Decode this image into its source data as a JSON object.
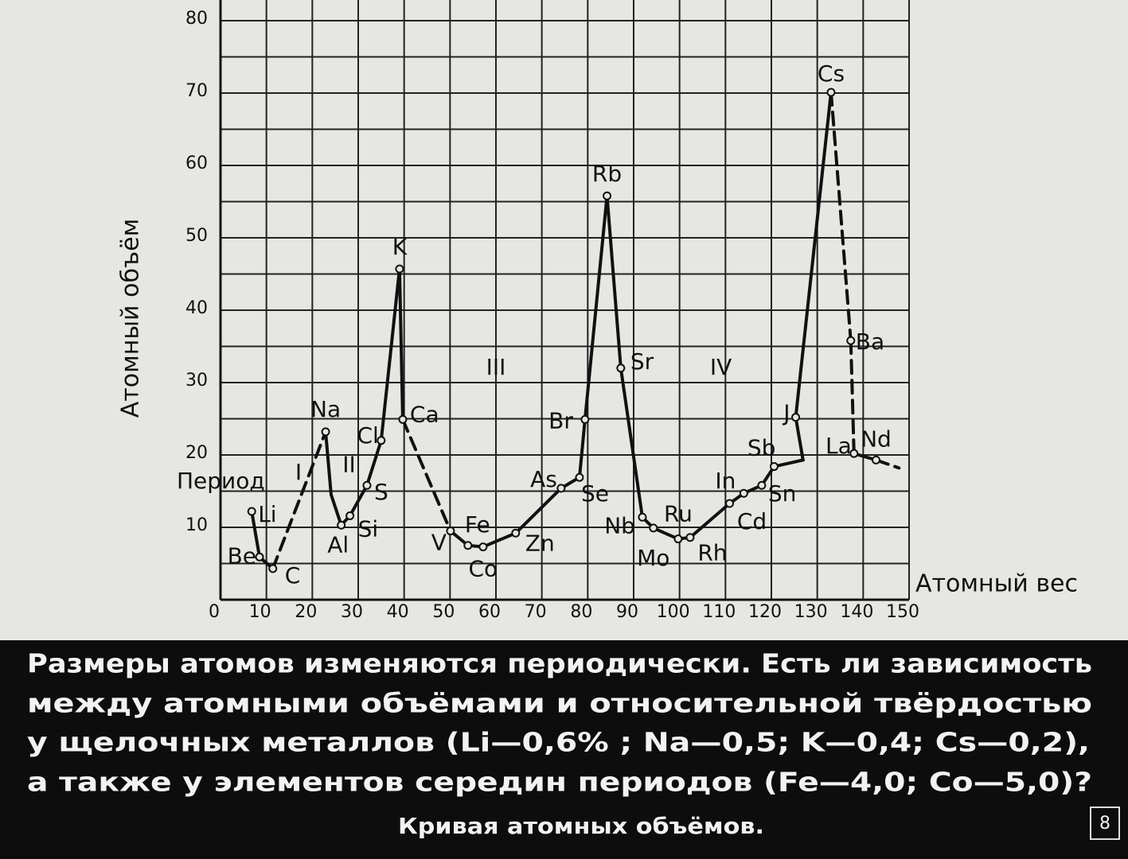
{
  "chart_data": {
    "type": "line",
    "ylabel": "Атомный объём",
    "xlabel": "Атомный вес",
    "period_label": "Период",
    "periods": [
      {
        "label": "I",
        "x": 17,
        "y": 17.5
      },
      {
        "label": "II",
        "x": 28,
        "y": 18.5
      },
      {
        "label": "III",
        "x": 60,
        "y": 32
      },
      {
        "label": "IV",
        "x": 109,
        "y": 32
      }
    ],
    "xlim": [
      0,
      150
    ],
    "ylim": [
      0,
      80
    ],
    "xticks": [
      0,
      10,
      20,
      30,
      40,
      50,
      60,
      70,
      80,
      90,
      100,
      110,
      120,
      130,
      140,
      150
    ],
    "yticks": [
      10,
      20,
      30,
      40,
      50,
      60,
      70,
      80
    ],
    "y_minor_grid": [
      5,
      15,
      25,
      35,
      45,
      55,
      65,
      75
    ],
    "grid": true,
    "series": [
      {
        "color": "#111111",
        "x": [
          6.8,
          8.5,
          11.4,
          22.9,
          24.1,
          26.3,
          28.2,
          31.9,
          35,
          39,
          39.7,
          50.1,
          53.9,
          57.2,
          64.3,
          74.2,
          78.2,
          79.4,
          84.2,
          87.2,
          91.9,
          94.3,
          99.7,
          102.3,
          110.9,
          114,
          117.9,
          120.6,
          126.9,
          125.3,
          133,
          137.3,
          138,
          142.8,
          147.8
        ],
        "values": [
          12.2,
          5.9,
          4.3,
          23.2,
          14.5,
          10.3,
          11.6,
          15.8,
          22,
          45.7,
          24.9,
          9.5,
          7.5,
          7.3,
          9.2,
          15.4,
          16.9,
          24.9,
          55.8,
          32,
          11.4,
          9.9,
          8.4,
          8.6,
          13.3,
          14.7,
          15.8,
          18.4,
          19.3,
          25.2,
          70.1,
          35.8,
          20.2,
          19.3,
          18.2
        ],
        "labels": [
          "Li",
          "Be",
          "C",
          "Na",
          null,
          "Al",
          "Si",
          "S",
          "Cl",
          "K",
          "Ca",
          "V",
          "Fe",
          "Co",
          "Zn",
          "As",
          "Se",
          "Br",
          "Rb",
          "Sr",
          "Nb",
          "Mo",
          "Ru",
          "Rh",
          "Cd",
          "In",
          "Sn",
          "Sb",
          null,
          "J",
          "Cs",
          "Ba",
          "La",
          "Nd",
          null
        ],
        "line_styles": [
          "solid",
          "solid",
          "dashed",
          "solid",
          "solid",
          "solid",
          "solid",
          "solid",
          "solid",
          "solid",
          "dashed",
          "solid",
          "solid",
          "solid",
          "solid",
          "solid",
          "solid",
          "solid",
          "solid",
          "solid",
          "solid",
          "solid",
          "solid",
          "solid",
          "solid",
          "solid",
          "solid",
          "solid",
          "solid",
          "solid",
          "dashed",
          "dashed",
          "solid",
          "dashed"
        ]
      }
    ]
  },
  "caption": {
    "lines": [
      "Размеры атомов изменяются периодически. Есть ли зависимость",
      "между атомными объёмами и относительной твёрдостью",
      "у щелочных металлов (Li—0,6% ; Na—0,5; K—0,4; Cs—0,2),",
      "а также у элементов середин периодов (Fe—4,0; Co—5,0)?"
    ],
    "title": "Кривая атомных объёмов.",
    "frame": "8"
  }
}
